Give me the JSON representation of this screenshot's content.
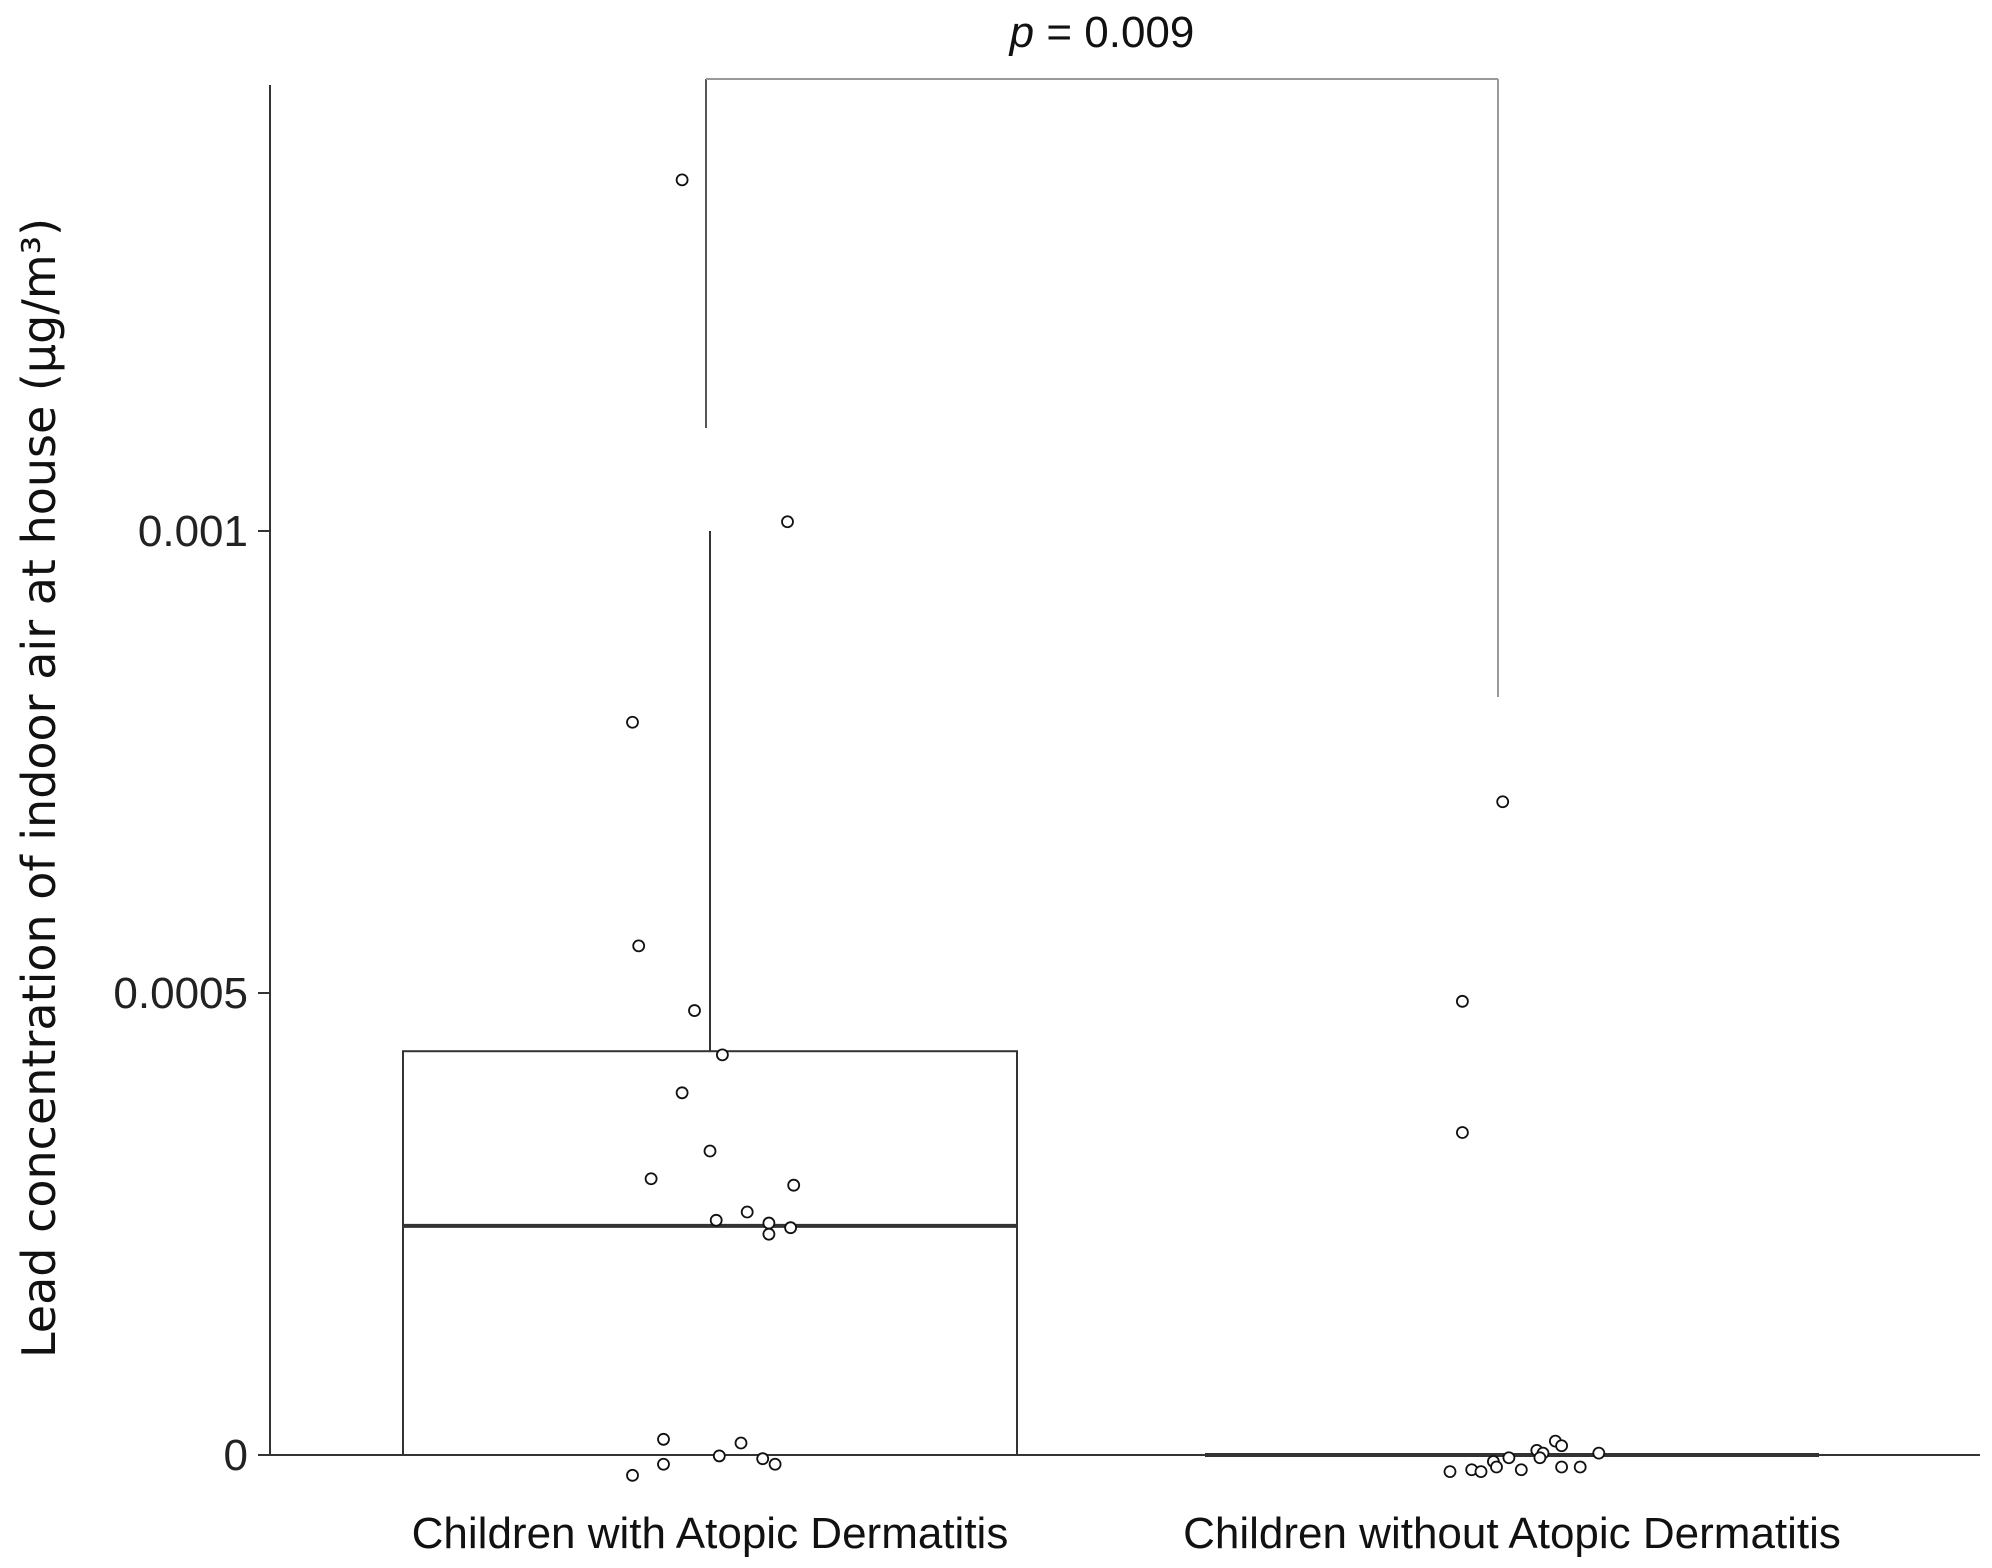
{
  "chart_data": {
    "type": "box",
    "ylabel": "Lead concentration of indoor air at house (µg/m³)",
    "xlabel": "",
    "ylim": [
      0,
      0.0014
    ],
    "yticks": [
      0,
      0.0005,
      0.001
    ],
    "ytick_labels": [
      "0",
      "0.0005",
      "0.001"
    ],
    "categories": [
      "Children with Atopic Dermatitis",
      "Children without Atopic Dermatitis"
    ],
    "boxes": [
      {
        "q1": 0,
        "median": 0.000248,
        "q3": 0.000437,
        "whisker_low": 0,
        "whisker_high": 0.001
      },
      {
        "q1": 0,
        "median": 0,
        "q3": 0,
        "whisker_low": 0,
        "whisker_high": 0
      }
    ],
    "points": [
      [
        {
          "x": -0.09,
          "y": 0.00138
        },
        {
          "x": 0.25,
          "y": 0.00101
        },
        {
          "x": -0.25,
          "y": 0.000793
        },
        {
          "x": -0.23,
          "y": 0.000551
        },
        {
          "x": -0.05,
          "y": 0.000481
        },
        {
          "x": 0.04,
          "y": 0.000433
        },
        {
          "x": -0.09,
          "y": 0.000392
        },
        {
          "x": 0.0,
          "y": 0.000329
        },
        {
          "x": -0.19,
          "y": 0.000299
        },
        {
          "x": 0.27,
          "y": 0.000292
        },
        {
          "x": 0.12,
          "y": 0.000263
        },
        {
          "x": 0.02,
          "y": 0.000254
        },
        {
          "x": 0.19,
          "y": 0.000251
        },
        {
          "x": 0.26,
          "y": 0.000246
        },
        {
          "x": 0.19,
          "y": 0.000239
        },
        {
          "x": -0.15,
          "y": 1.7e-05
        },
        {
          "x": 0.1,
          "y": 1.3e-05
        },
        {
          "x": 0.03,
          "y": -1e-06
        },
        {
          "x": 0.17,
          "y": -4e-06
        },
        {
          "x": -0.15,
          "y": -1e-05
        },
        {
          "x": 0.21,
          "y": -1e-05
        },
        {
          "x": -0.25,
          "y": -2.2e-05
        }
      ],
      [
        {
          "x": -0.03,
          "y": 0.000707
        },
        {
          "x": -0.16,
          "y": 0.000491
        },
        {
          "x": -0.16,
          "y": 0.000349
        },
        {
          "x": 0.14,
          "y": 1.5e-05
        },
        {
          "x": 0.16,
          "y": 1e-05
        },
        {
          "x": 0.08,
          "y": 5e-06
        },
        {
          "x": 0.1,
          "y": 2e-06
        },
        {
          "x": 0.28,
          "y": 2e-06
        },
        {
          "x": 0.09,
          "y": -3e-06
        },
        {
          "x": -0.01,
          "y": -3e-06
        },
        {
          "x": -0.06,
          "y": -7e-06
        },
        {
          "x": -0.05,
          "y": -1.3e-05
        },
        {
          "x": 0.16,
          "y": -1.3e-05
        },
        {
          "x": 0.22,
          "y": -1.3e-05
        },
        {
          "x": -0.13,
          "y": -1.6e-05
        },
        {
          "x": 0.03,
          "y": -1.6e-05
        },
        {
          "x": -0.2,
          "y": -1.8e-05
        },
        {
          "x": -0.1,
          "y": -1.8e-05
        }
      ]
    ],
    "comparison": {
      "label_prefix": "p",
      "label_rest": " = 0.009",
      "between": [
        0,
        1
      ]
    }
  }
}
